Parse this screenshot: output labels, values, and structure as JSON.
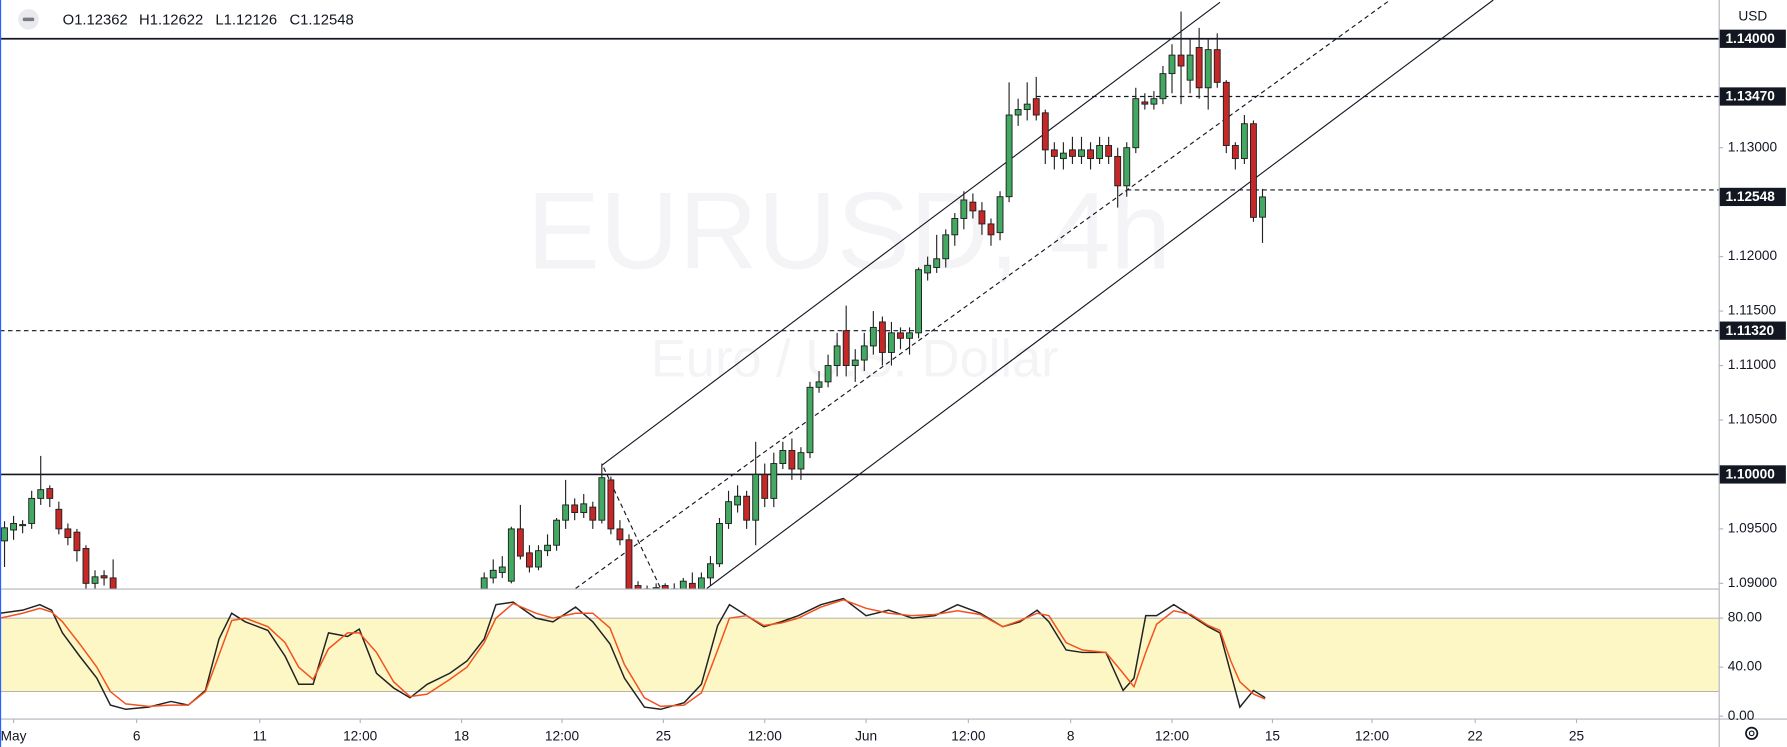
{
  "chart_data": [
    {
      "type": "candlestick",
      "title": "EURUSD, 4h",
      "subtitle": "Euro / U.S. Dollar",
      "currency": "USD",
      "ohlc": [
        "O1.12362",
        "H1.12622",
        "L1.12126",
        "C1.12548"
      ],
      "x": [
        0,
        1,
        2,
        3,
        4,
        5,
        6,
        7,
        8,
        9,
        10,
        11,
        12,
        53,
        54,
        55,
        56,
        57,
        58,
        59,
        60,
        61,
        62,
        63,
        64,
        65,
        66,
        67,
        68,
        69,
        70,
        71,
        72,
        73,
        74,
        75,
        76,
        77,
        78,
        79,
        80,
        81,
        82,
        83,
        84,
        85,
        86,
        87,
        88,
        89,
        90,
        91,
        92,
        93,
        94,
        95,
        96,
        97,
        98,
        99,
        100,
        101,
        102,
        103,
        104,
        105,
        106,
        107,
        108,
        109,
        110,
        111,
        112,
        113,
        114,
        115,
        116,
        117,
        118,
        119,
        120,
        121,
        122,
        123,
        124,
        125,
        126,
        127,
        128,
        129,
        130,
        131,
        132,
        133,
        134,
        135,
        136,
        137,
        138,
        139
      ],
      "open": [
        1.0939,
        1.0949,
        1.0953,
        1.0955,
        1.0978,
        1.0987,
        1.0968,
        1.095,
        1.0947,
        1.0932,
        1.09,
        1.0907,
        1.0905,
        1.0895,
        1.0905,
        1.091,
        1.0902,
        1.095,
        1.0928,
        1.0915,
        1.093,
        1.0935,
        1.0958,
        1.0972,
        1.0965,
        1.097,
        1.0958,
        1.0995,
        1.095,
        1.094,
        1.0898,
        1.0895,
        1.0894,
        1.0898,
        1.0892,
        1.0893,
        1.09,
        1.0895,
        1.0905,
        1.0918,
        1.0955,
        1.0972,
        1.098,
        1.0958,
        1.1,
        1.0978,
        1.101,
        1.1022,
        1.1005,
        1.102,
        1.108,
        1.1085,
        1.11,
        1.1132,
        1.11,
        1.1105,
        1.1118,
        1.114,
        1.1112,
        1.113,
        1.1125,
        1.113,
        1.1185,
        1.119,
        1.1198,
        1.122,
        1.1235,
        1.125,
        1.1242,
        1.123,
        1.1222,
        1.1255,
        1.133,
        1.1335,
        1.1345,
        1.1332,
        1.1298,
        1.129,
        1.1298,
        1.1292,
        1.1298,
        1.129,
        1.1302,
        1.1292,
        1.1265,
        1.13,
        1.1342,
        1.134,
        1.1345,
        1.1368,
        1.1385,
        1.1362,
        1.1392,
        1.1355,
        1.139,
        1.136,
        1.1302,
        1.129,
        1.1322,
        1.12362
      ],
      "high": [
        1.0957,
        1.0962,
        1.0958,
        1.0985,
        1.1017,
        1.099,
        1.0975,
        1.0955,
        1.095,
        1.0935,
        1.0912,
        1.0912,
        1.0922,
        1.091,
        1.0922,
        1.0925,
        1.0952,
        1.0972,
        1.0935,
        1.0935,
        1.0945,
        1.096,
        1.0995,
        1.0978,
        1.0982,
        1.0975,
        1.101,
        1.0998,
        1.0958,
        1.0945,
        1.0902,
        1.0898,
        1.09,
        1.09,
        1.09,
        1.0905,
        1.091,
        1.091,
        1.0925,
        1.096,
        1.0985,
        1.099,
        1.0985,
        1.103,
        1.101,
        1.102,
        1.103,
        1.1033,
        1.1025,
        1.1085,
        1.1095,
        1.111,
        1.113,
        1.1155,
        1.1115,
        1.113,
        1.115,
        1.1145,
        1.114,
        1.1135,
        1.1135,
        1.119,
        1.12,
        1.122,
        1.1225,
        1.124,
        1.126,
        1.1258,
        1.125,
        1.1235,
        1.126,
        1.136,
        1.1345,
        1.136,
        1.1365,
        1.1335,
        1.1305,
        1.1305,
        1.131,
        1.131,
        1.1305,
        1.131,
        1.131,
        1.13,
        1.1305,
        1.1355,
        1.135,
        1.1352,
        1.1375,
        1.1395,
        1.1425,
        1.14,
        1.141,
        1.14,
        1.1405,
        1.1362,
        1.1305,
        1.133,
        1.1325,
        1.12622
      ],
      "low": [
        1.0915,
        1.094,
        1.0946,
        1.095,
        1.0972,
        1.097,
        1.0945,
        1.0935,
        1.092,
        1.0895,
        1.0895,
        1.0898,
        1.089,
        1.089,
        1.09,
        1.0905,
        1.09,
        1.0922,
        1.091,
        1.0912,
        1.0925,
        1.093,
        1.095,
        1.0958,
        1.096,
        1.095,
        1.0955,
        1.0945,
        1.0935,
        1.089,
        1.089,
        1.089,
        1.089,
        1.089,
        1.089,
        1.089,
        1.089,
        1.089,
        1.0898,
        1.0915,
        1.095,
        1.0965,
        1.095,
        1.0935,
        1.097,
        1.097,
        1.1005,
        1.0995,
        1.0995,
        1.1015,
        1.1075,
        1.108,
        1.109,
        1.109,
        1.1085,
        1.1095,
        1.111,
        1.11,
        1.11,
        1.1115,
        1.111,
        1.1125,
        1.1178,
        1.1185,
        1.119,
        1.121,
        1.1225,
        1.1235,
        1.122,
        1.121,
        1.1215,
        1.125,
        1.132,
        1.1325,
        1.1325,
        1.1285,
        1.128,
        1.128,
        1.1285,
        1.1285,
        1.128,
        1.1285,
        1.1285,
        1.1245,
        1.1255,
        1.1295,
        1.1335,
        1.1335,
        1.134,
        1.135,
        1.134,
        1.135,
        1.1345,
        1.1335,
        1.1355,
        1.1295,
        1.128,
        1.1285,
        1.1232,
        1.12126
      ],
      "close": [
        1.0951,
        1.0955,
        1.0954,
        1.0978,
        1.0986,
        1.0978,
        1.095,
        1.0942,
        1.093,
        1.09,
        1.0906,
        1.0905,
        1.0895,
        1.0905,
        1.0912,
        1.0915,
        1.095,
        1.0925,
        1.0915,
        1.093,
        1.0935,
        1.0958,
        1.0972,
        1.0965,
        1.0973,
        1.0958,
        1.0997,
        1.095,
        1.094,
        1.0895,
        1.0893,
        1.0894,
        1.0896,
        1.0892,
        1.0895,
        1.0902,
        1.0893,
        1.0905,
        1.0918,
        1.0955,
        1.0975,
        1.098,
        1.0958,
        1.1,
        1.0978,
        1.101,
        1.1022,
        1.1005,
        1.102,
        1.108,
        1.1085,
        1.11,
        1.1118,
        1.11,
        1.1105,
        1.1118,
        1.1135,
        1.1112,
        1.113,
        1.1125,
        1.113,
        1.1188,
        1.1192,
        1.1198,
        1.122,
        1.1235,
        1.1252,
        1.1242,
        1.123,
        1.122,
        1.1255,
        1.133,
        1.1335,
        1.134,
        1.133,
        1.1298,
        1.1292,
        1.1295,
        1.1292,
        1.1298,
        1.129,
        1.1302,
        1.1292,
        1.1265,
        1.13,
        1.1345,
        1.134,
        1.1345,
        1.1368,
        1.1385,
        1.1375,
        1.1385,
        1.1355,
        1.139,
        1.136,
        1.1302,
        1.129,
        1.1322,
        1.1236,
        1.12548
      ],
      "up_color": "#43a862",
      "down_color": "#c62828",
      "xlim": [
        -0.5,
        189.4
      ],
      "xticks": [
        {
          "value": 1.0,
          "label": "May"
        },
        {
          "value": 14.6,
          "label": "6"
        },
        {
          "value": 28.2,
          "label": "11"
        },
        {
          "value": 39.3,
          "label": "12:00"
        },
        {
          "value": 50.5,
          "label": "18"
        },
        {
          "value": 61.6,
          "label": "12:00"
        },
        {
          "value": 72.8,
          "label": "25"
        },
        {
          "value": 84.0,
          "label": "12:00"
        },
        {
          "value": 95.2,
          "label": "Jun"
        },
        {
          "value": 106.5,
          "label": "12:00"
        },
        {
          "value": 117.8,
          "label": "8"
        },
        {
          "value": 129.0,
          "label": "12:00"
        },
        {
          "value": 140.1,
          "label": "15"
        },
        {
          "value": 151.1,
          "label": "12:00"
        },
        {
          "value": 162.5,
          "label": "22"
        },
        {
          "value": 173.7,
          "label": "25"
        }
      ],
      "ylim": [
        1.08953,
        1.14356
      ],
      "yticks": [
        {
          "value": 1.09,
          "label": "1.09000"
        },
        {
          "value": 1.095,
          "label": "1.09500"
        },
        {
          "value": 1.105,
          "label": "1.10500"
        },
        {
          "value": 1.11,
          "label": "1.11000"
        },
        {
          "value": 1.115,
          "label": "1.11500"
        },
        {
          "value": 1.12,
          "label": "1.12000"
        },
        {
          "value": 1.13,
          "label": "1.13000"
        }
      ],
      "levels": [
        {
          "value": 1.14,
          "label": "1.14000",
          "style": "solid"
        },
        {
          "value": 1.1347,
          "label": "1.13470",
          "style": "dashed",
          "start": 114
        },
        {
          "value": 1.12612,
          "style": "dashed",
          "start": 124
        },
        {
          "value": 1.1132,
          "label": "1.11320",
          "style": "dashed"
        },
        {
          "value": 1.1,
          "label": "1.10000",
          "style": "solid"
        }
      ],
      "last_price": {
        "value": 1.12548,
        "label": "1.12548"
      },
      "trendlines": [
        {
          "x": [
            66.0,
            134.3
          ],
          "y": [
            1.10084,
            1.14335
          ],
          "style": "solid"
        },
        {
          "x": [
            77.6,
            164.5
          ],
          "y": [
            1.08953,
            1.14356
          ],
          "style": "solid"
        },
        {
          "x": [
            63.1,
            153.1
          ],
          "y": [
            1.08953,
            1.14356
          ],
          "style": "dashed"
        },
        {
          "x": [
            66.2,
            72.5
          ],
          "y": [
            1.10063,
            1.08953
          ],
          "style": "dashed"
        }
      ]
    },
    {
      "type": "line",
      "x": [
        -0.5,
        2.0,
        3.9,
        5.2,
        6.4,
        8.3,
        10.2,
        11.7,
        13.4,
        15.9,
        18.4,
        20.3,
        22.2,
        23.7,
        25.1,
        26.6,
        29.1,
        31.0,
        32.5,
        34.1,
        35.8,
        37.9,
        39.2,
        41.1,
        43.0,
        44.8,
        46.7,
        49.2,
        51.1,
        53.0,
        54.3,
        56.2,
        58.7,
        60.6,
        63.1,
        65.0,
        66.9,
        68.5,
        70.7,
        72.5,
        75.1,
        77.0,
        78.8,
        80.1,
        82.0,
        83.9,
        85.8,
        87.7,
        90.2,
        92.7,
        95.2,
        97.7,
        100.3,
        102.8,
        105.3,
        107.8,
        110.3,
        112.2,
        114.1,
        115.4,
        117.3,
        119.1,
        121.7,
        123.6,
        124.8,
        126.1,
        127.3,
        129.2,
        131.1,
        133.0,
        134.3,
        135.5,
        136.5,
        138.0,
        139.3
      ],
      "series": [
        {
          "color": "#222222",
          "values": [
            84,
            86.5,
            91,
            86.5,
            68,
            49,
            31,
            9,
            5.6,
            7.4,
            12,
            9,
            21,
            63,
            84,
            77,
            70,
            49,
            26,
            26,
            68,
            65,
            71,
            35,
            23,
            15,
            26,
            35,
            45,
            63,
            91,
            93,
            80,
            77,
            89,
            77,
            59,
            31,
            7.4,
            5.6,
            11,
            26,
            74,
            91,
            82,
            73,
            77,
            82,
            91,
            96,
            82,
            86.5,
            80,
            82,
            91,
            84,
            73,
            77,
            86.5,
            77,
            54,
            52,
            52,
            21,
            31,
            82,
            82,
            91,
            82,
            73,
            68,
            35,
            7.4,
            21,
            15
          ]
        },
        {
          "color": "#f4511e",
          "values": [
            80,
            84,
            88,
            85,
            77,
            59,
            40,
            20,
            10,
            8,
            9,
            9,
            20,
            50,
            78,
            80,
            73,
            60,
            40,
            30,
            55,
            68,
            68,
            52,
            28,
            16,
            18,
            30,
            40,
            60,
            80,
            92,
            84,
            80,
            84,
            84,
            72,
            42,
            15,
            8,
            9,
            19,
            54,
            80,
            82,
            74,
            76,
            80,
            89,
            95,
            88,
            84,
            82,
            83,
            86,
            83,
            73,
            78,
            84,
            82,
            60,
            54,
            52,
            35,
            24,
            52,
            75,
            86,
            83,
            74,
            70,
            45,
            28,
            18,
            14
          ]
        }
      ],
      "ylim": [
        -1.9,
        104.2
      ],
      "yticks": [
        {
          "value": 0,
          "label": "0.00"
        },
        {
          "value": 40,
          "label": "40.00"
        },
        {
          "value": 80,
          "label": "80.00"
        }
      ],
      "band": [
        20,
        80
      ],
      "band_color": "#fcf7c5"
    }
  ]
}
